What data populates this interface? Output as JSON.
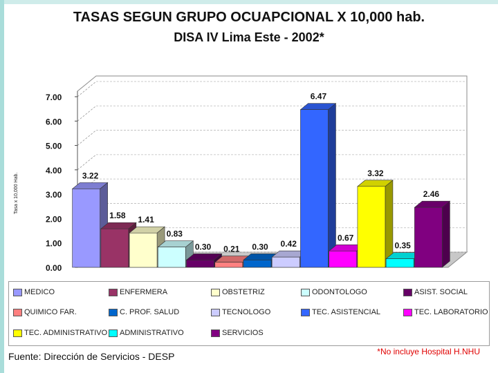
{
  "page": {
    "title": "TASAS SEGUN GRUPO OCUAPCIONAL X 10,000 hab.",
    "subtitle": "DISA IV Lima Este - 2002*",
    "source": "Fuente: Dirección de Servicios - DESP",
    "note": "*No incluye  Hospital H.NHU"
  },
  "chart_data": {
    "type": "bar",
    "title": "TASAS SEGUN GRUPO OCUAPCIONAL X 10,000 hab.",
    "subtitle": "DISA IV Lima Este - 2002*",
    "ylabel": "Tasa x 10,000 Hab.",
    "ylim": [
      0,
      7
    ],
    "yticks": [
      "0.00",
      "1.00",
      "2.00",
      "3.00",
      "4.00",
      "5.00",
      "6.00",
      "7.00"
    ],
    "grid": true,
    "legend_position": "bottom",
    "categories": [
      "MEDICO",
      "ENFERMERA",
      "OBSTETRIZ",
      "ODONTOLOGO",
      "ASIST. SOCIAL",
      "QUIMICO FAR.",
      "C. PROF. SALUD",
      "TECNOLOGO",
      "TEC. ASISTENCIAL",
      "TEC. LABORATORIO",
      "TEC. ADMINISTRATIVO",
      "ADMINISTRATIVO",
      "SERVICIOS"
    ],
    "values": [
      3.22,
      1.58,
      1.41,
      0.83,
      0.3,
      0.21,
      0.3,
      0.42,
      6.47,
      0.67,
      3.32,
      0.35,
      2.46
    ],
    "labels": [
      "3.22",
      "1.58",
      "1.41",
      "0.83",
      "0.30",
      "0.21",
      "0.30",
      "0.42",
      "6.47",
      "0.67",
      "3.32",
      "0.35",
      "2.46"
    ],
    "colors": [
      "#9999ff",
      "#993366",
      "#ffffcc",
      "#ccffff",
      "#660066",
      "#ff8080",
      "#0066cc",
      "#ccccff",
      "#3366ff",
      "#ff00ff",
      "#ffff00",
      "#00ffff",
      "#800080"
    ]
  }
}
